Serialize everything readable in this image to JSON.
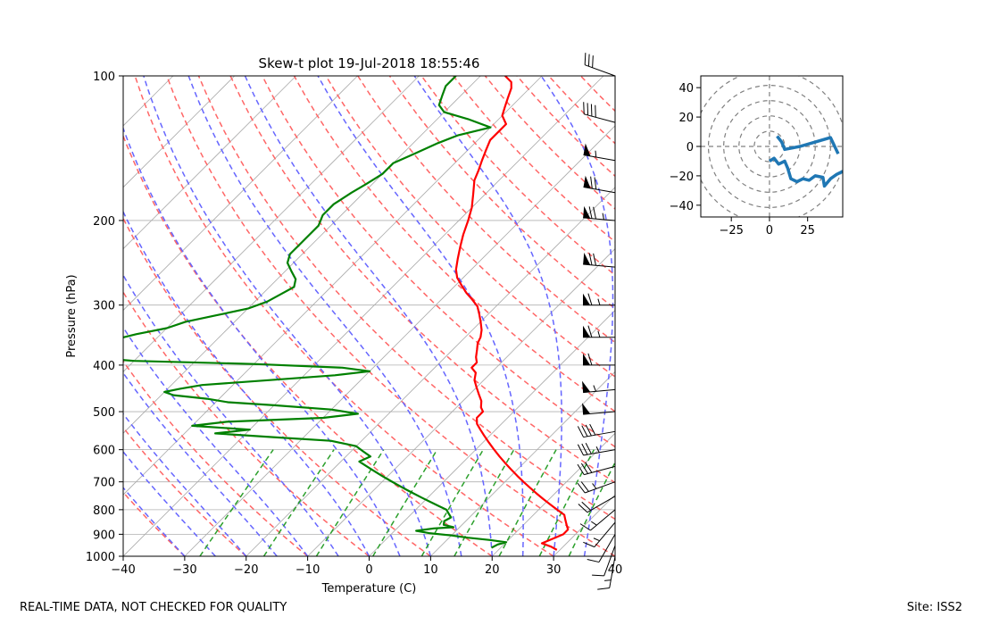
{
  "chart_data": [
    {
      "type": "line",
      "title": "Skew-t plot 19-Jul-2018 18:55:46",
      "xlabel": "Temperature (C)",
      "ylabel": "Pressure (hPa)",
      "xlim": [
        -40,
        40
      ],
      "ylim": [
        1000,
        100
      ],
      "y_scale": "log",
      "x_ticks": [
        "−40",
        "−30",
        "−20",
        "−10",
        "0",
        "10",
        "20",
        "30",
        "40"
      ],
      "y_ticks": [
        "100",
        "200",
        "300",
        "400",
        "500",
        "600",
        "700",
        "800",
        "900",
        "1000"
      ],
      "grid": true,
      "colors": {
        "temperature": "#ff0000",
        "dewpoint": "#008000",
        "dry_adiabats": "#ff6666",
        "moist_adiabats": "#6666ff",
        "mixing_ratio": "#2ca02c",
        "isotherms": "#aaaaaa",
        "wind_barbs": "#000000"
      },
      "series": [
        {
          "key": "temperature",
          "points": [
            [
              29.5,
              970
            ],
            [
              28,
              955
            ],
            [
              26,
              940
            ],
            [
              27,
              920
            ],
            [
              28,
              900
            ],
            [
              28,
              880
            ],
            [
              27,
              860
            ],
            [
              26,
              840
            ],
            [
              25,
              820
            ],
            [
              23,
              800
            ],
            [
              21,
              780
            ],
            [
              19,
              760
            ],
            [
              17,
              740
            ],
            [
              15,
              720
            ],
            [
              13,
              700
            ],
            [
              11,
              680
            ],
            [
              9,
              660
            ],
            [
              7,
              640
            ],
            [
              5,
              620
            ],
            [
              3,
              600
            ],
            [
              1,
              580
            ],
            [
              -1,
              560
            ],
            [
              -2.5,
              545
            ],
            [
              -4,
              530
            ],
            [
              -5,
              515
            ],
            [
              -5,
              500
            ],
            [
              -6,
              490
            ],
            [
              -7,
              475
            ],
            [
              -8.5,
              460
            ],
            [
              -10,
              445
            ],
            [
              -11.5,
              430
            ],
            [
              -12.5,
              415
            ],
            [
              -14,
              405
            ],
            [
              -14,
              395
            ],
            [
              -15,
              385
            ],
            [
              -16,
              372
            ],
            [
              -17,
              360
            ],
            [
              -17.5,
              350
            ],
            [
              -18.5,
              338
            ],
            [
              -20,
              325
            ],
            [
              -21.5,
              313
            ],
            [
              -23,
              302
            ],
            [
              -25,
              292
            ],
            [
              -27,
              283
            ],
            [
              -29,
              273
            ],
            [
              -31,
              263
            ],
            [
              -32.5,
              253
            ],
            [
              -34,
              240
            ],
            [
              -35.5,
              227
            ],
            [
              -37,
              214
            ],
            [
              -38.5,
              200
            ],
            [
              -40,
              188
            ],
            [
              -42,
              176
            ],
            [
              -44,
              165
            ],
            [
              -45,
              157
            ],
            [
              -46,
              150
            ],
            [
              -47,
              143
            ],
            [
              -48,
              136
            ],
            [
              -48,
              130
            ],
            [
              -48,
              126
            ],
            [
              -50,
              121
            ],
            [
              -51,
              116
            ],
            [
              -52,
              111
            ],
            [
              -53,
              106
            ],
            [
              -54,
              103
            ],
            [
              -56,
              100
            ]
          ]
        },
        {
          "key": "dewpoint",
          "points": [
            [
              18.5,
              960
            ],
            [
              19,
              945
            ],
            [
              20,
              935
            ],
            [
              17,
              925
            ],
            [
              13,
              915
            ],
            [
              10,
              905
            ],
            [
              6,
              895
            ],
            [
              3.5,
              885
            ],
            [
              6,
              875
            ],
            [
              9,
              870
            ],
            [
              7,
              860
            ],
            [
              6.5,
              845
            ],
            [
              7,
              830
            ],
            [
              6,
              815
            ],
            [
              5,
              800
            ],
            [
              3,
              785
            ],
            [
              1,
              770
            ],
            [
              -1,
              755
            ],
            [
              -3,
              740
            ],
            [
              -5,
              725
            ],
            [
              -7,
              710
            ],
            [
              -9,
              695
            ],
            [
              -11,
              680
            ],
            [
              -13,
              665
            ],
            [
              -15,
              650
            ],
            [
              -17,
              635
            ],
            [
              -16,
              620
            ],
            [
              -18,
              605
            ],
            [
              -20,
              590
            ],
            [
              -25,
              575
            ],
            [
              -35,
              565
            ],
            [
              -45,
              555
            ],
            [
              -40,
              545
            ],
            [
              -50,
              535
            ],
            [
              -45,
              525
            ],
            [
              -30,
              515
            ],
            [
              -25,
              505
            ],
            [
              -30,
              495
            ],
            [
              -40,
              485
            ],
            [
              -48,
              478
            ],
            [
              -52,
              470
            ],
            [
              -58,
              462
            ],
            [
              -60,
              455
            ],
            [
              -58,
              448
            ],
            [
              -55,
              440
            ],
            [
              -45,
              430
            ],
            [
              -35,
              420
            ],
            [
              -30,
              412
            ],
            [
              -35,
              405
            ],
            [
              -50,
              398
            ],
            [
              -70,
              392
            ],
            [
              -75,
              388
            ],
            [
              -77,
              383
            ],
            [
              -76,
              375
            ],
            [
              -75,
              365
            ],
            [
              -77,
              355
            ],
            [
              -74,
              345
            ],
            [
              -70,
              335
            ],
            [
              -68,
              325
            ],
            [
              -64,
              315
            ],
            [
              -60,
              305
            ],
            [
              -58,
              295
            ],
            [
              -57,
              285
            ],
            [
              -56,
              275
            ],
            [
              -57,
              265
            ],
            [
              -59,
              255
            ],
            [
              -61,
              245
            ],
            [
              -62,
              235
            ],
            [
              -62,
              225
            ],
            [
              -62,
              215
            ],
            [
              -62,
              205
            ],
            [
              -63,
              195
            ],
            [
              -63,
              185
            ],
            [
              -62,
              175
            ],
            [
              -61,
              168
            ],
            [
              -60,
              160
            ],
            [
              -60,
              152
            ],
            [
              -58,
              145
            ],
            [
              -56,
              138
            ],
            [
              -54,
              133
            ],
            [
              -50,
              128
            ],
            [
              -55,
              123
            ],
            [
              -60,
              119
            ],
            [
              -62,
              115
            ],
            [
              -63,
              110
            ],
            [
              -64,
              105
            ],
            [
              -64,
              100
            ]
          ]
        }
      ],
      "wind_barbs": {
        "pressures": [
          1000,
          950,
          900,
          850,
          800,
          750,
          700,
          650,
          600,
          550,
          500,
          450,
          400,
          350,
          300,
          250,
          200,
          175,
          150,
          125,
          100
        ],
        "speeds_kt": [
          15,
          10,
          10,
          15,
          15,
          20,
          25,
          30,
          35,
          40,
          50,
          55,
          60,
          65,
          65,
          70,
          75,
          70,
          55,
          40,
          30
        ],
        "directions_deg": [
          190,
          200,
          210,
          220,
          230,
          240,
          250,
          255,
          260,
          260,
          265,
          265,
          270,
          270,
          270,
          275,
          275,
          280,
          280,
          285,
          290
        ]
      }
    },
    {
      "type": "line",
      "title": "",
      "xlim": [
        -45,
        48
      ],
      "ylim": [
        -48,
        48
      ],
      "x_ticks": [
        "−25",
        "0",
        "25"
      ],
      "y_ticks": [
        "40",
        "20",
        "0",
        "−20",
        "−40"
      ],
      "rings": [
        10,
        20,
        30,
        40,
        50
      ],
      "color": "#1f77b4",
      "series": [
        {
          "key": "hodograph",
          "points": [
            [
              5,
              7
            ],
            [
              8,
              3
            ],
            [
              10,
              -2
            ],
            [
              20,
              0
            ],
            [
              30,
              3
            ],
            [
              40,
              6
            ],
            [
              45,
              -5
            ],
            [
              48,
              -10
            ]
          ],
          "segments": [
            [
              [
                5,
                7
              ],
              [
                8,
                3
              ],
              [
                10,
                -2
              ],
              [
                20,
                0
              ],
              [
                30,
                3
              ],
              [
                40,
                6
              ],
              [
                45,
                -5
              ]
            ],
            [
              [
                0,
                -10
              ],
              [
                3,
                -8
              ],
              [
                6,
                -12
              ],
              [
                10,
                -10
              ],
              [
                12,
                -15
              ],
              [
                14,
                -22
              ],
              [
                18,
                -24
              ],
              [
                22,
                -22
              ],
              [
                26,
                -23
              ],
              [
                30,
                -20
              ],
              [
                35,
                -21
              ],
              [
                36,
                -27
              ],
              [
                40,
                -22
              ],
              [
                44,
                -19
              ],
              [
                48,
                -17
              ]
            ]
          ]
        }
      ]
    }
  ],
  "footer": {
    "left": "REAL-TIME DATA, NOT CHECKED FOR QUALITY",
    "right": "Site: ISS2"
  }
}
